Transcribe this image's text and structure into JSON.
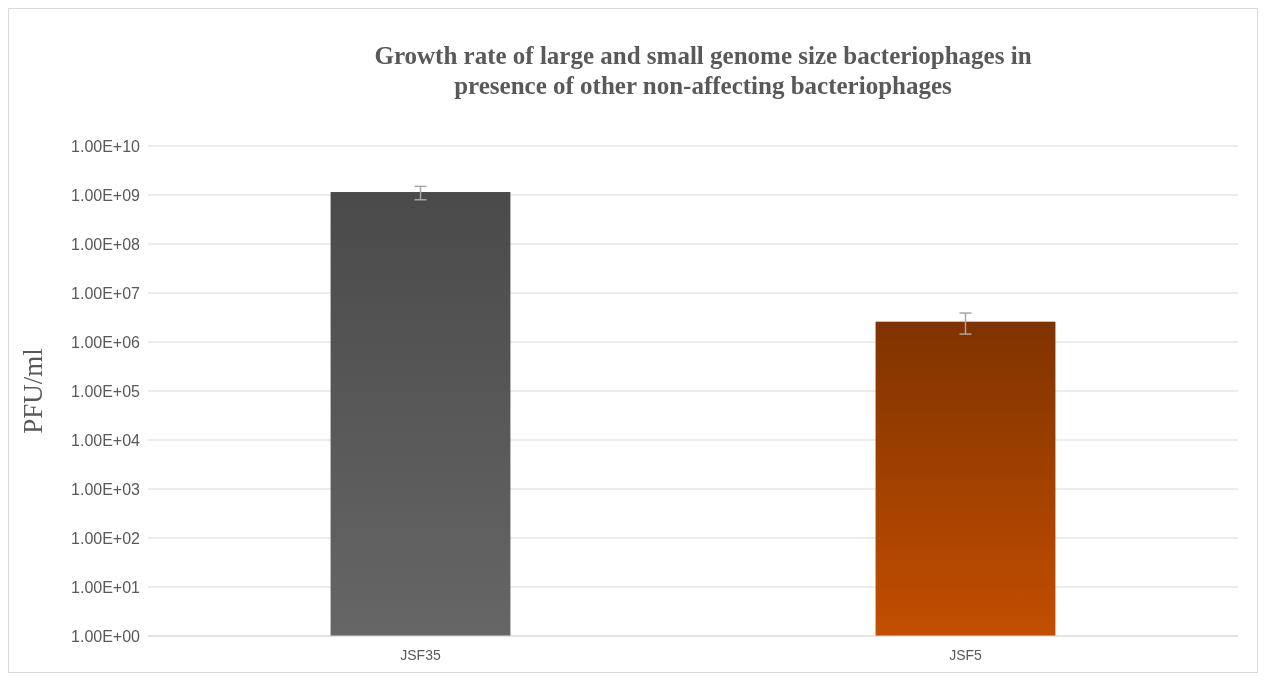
{
  "chart_data": {
    "type": "bar",
    "title": "Growth rate of large and small genome size bacteriophages in presence of other non-affecting bacteriophages",
    "ylabel": "PFU/ml",
    "categories": [
      "JSF35",
      "JSF5"
    ],
    "values": [
      1150000000,
      2600000
    ],
    "colors": [
      "#4a4a4a",
      "#7f3300"
    ],
    "errors": [
      [
        800000000,
        1500000000
      ],
      [
        1450000,
        3900000
      ]
    ],
    "log": true,
    "grid": "y",
    "ylim": [
      1,
      10000000000
    ],
    "yticks": [
      {
        "value": 1,
        "label": "1.00E+00"
      },
      {
        "value": 10,
        "label": "1.00E+01"
      },
      {
        "value": 100,
        "label": "1.00E+02"
      },
      {
        "value": 1000,
        "label": "1.00E+03"
      },
      {
        "value": 10000,
        "label": "1.00E+04"
      },
      {
        "value": 100000,
        "label": "1.00E+05"
      },
      {
        "value": 1000000,
        "label": "1.00E+06"
      },
      {
        "value": 10000000,
        "label": "1.00E+07"
      },
      {
        "value": 100000000,
        "label": "1.00E+08"
      },
      {
        "value": 1000000000,
        "label": "1.00E+09"
      },
      {
        "value": 10000000000,
        "label": "1.00E+10"
      }
    ]
  }
}
